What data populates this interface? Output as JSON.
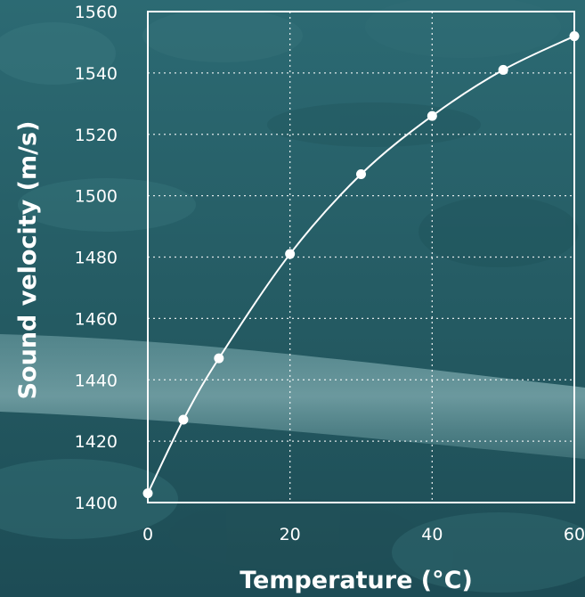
{
  "colors": {
    "background_dark": "#1b4a52",
    "background_mid": "#2f6e76",
    "background_light": "#4f8d93",
    "pipe": "#7fb0b4",
    "foreground": "#ffffff"
  },
  "chart_data": {
    "type": "line",
    "title": "",
    "xlabel": "Temperature (°C)",
    "ylabel": "Sound velocity (m/s)",
    "xlim": [
      0,
      60
    ],
    "ylim": [
      1400,
      1560
    ],
    "xticks": [
      0,
      20,
      40,
      60
    ],
    "yticks": [
      1400,
      1420,
      1440,
      1460,
      1480,
      1500,
      1520,
      1540,
      1560
    ],
    "grid": true,
    "grid_style": "dotted",
    "legend": "none",
    "series": [
      {
        "x": [
          0,
          5,
          10,
          20,
          30,
          40,
          50,
          60
        ],
        "y": [
          1403,
          1427,
          1447,
          1481,
          1507,
          1526,
          1541,
          1552
        ],
        "markers": true,
        "smooth": true
      }
    ]
  }
}
